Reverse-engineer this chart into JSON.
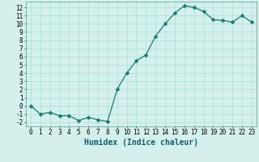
{
  "x": [
    0,
    1,
    2,
    3,
    4,
    5,
    6,
    7,
    8,
    9,
    10,
    11,
    12,
    13,
    14,
    15,
    16,
    17,
    18,
    19,
    20,
    21,
    22,
    23
  ],
  "y": [
    0.0,
    -1.0,
    -0.8,
    -1.2,
    -1.2,
    -1.8,
    -1.4,
    -1.7,
    -1.9,
    2.0,
    4.0,
    5.5,
    6.2,
    8.5,
    10.0,
    11.3,
    12.2,
    12.0,
    11.5,
    10.5,
    10.4,
    10.2,
    11.0,
    10.2
  ],
  "line_color": "#1a7a6e",
  "marker_color": "#1a7a6e",
  "bg_color": "#d4f0ec",
  "grid_color_major": "#a8d8d0",
  "xlabel": "Humidex (Indice chaleur)",
  "xlabel_color": "#1a5a6e",
  "ylabel_ticks": [
    -2,
    -1,
    0,
    1,
    2,
    3,
    4,
    5,
    6,
    7,
    8,
    9,
    10,
    11,
    12
  ],
  "xlim": [
    -0.5,
    23.5
  ],
  "ylim": [
    -2.5,
    12.7
  ],
  "tick_fontsize": 5.5,
  "xlabel_fontsize": 7,
  "marker_size": 2.5,
  "line_width": 0.9
}
